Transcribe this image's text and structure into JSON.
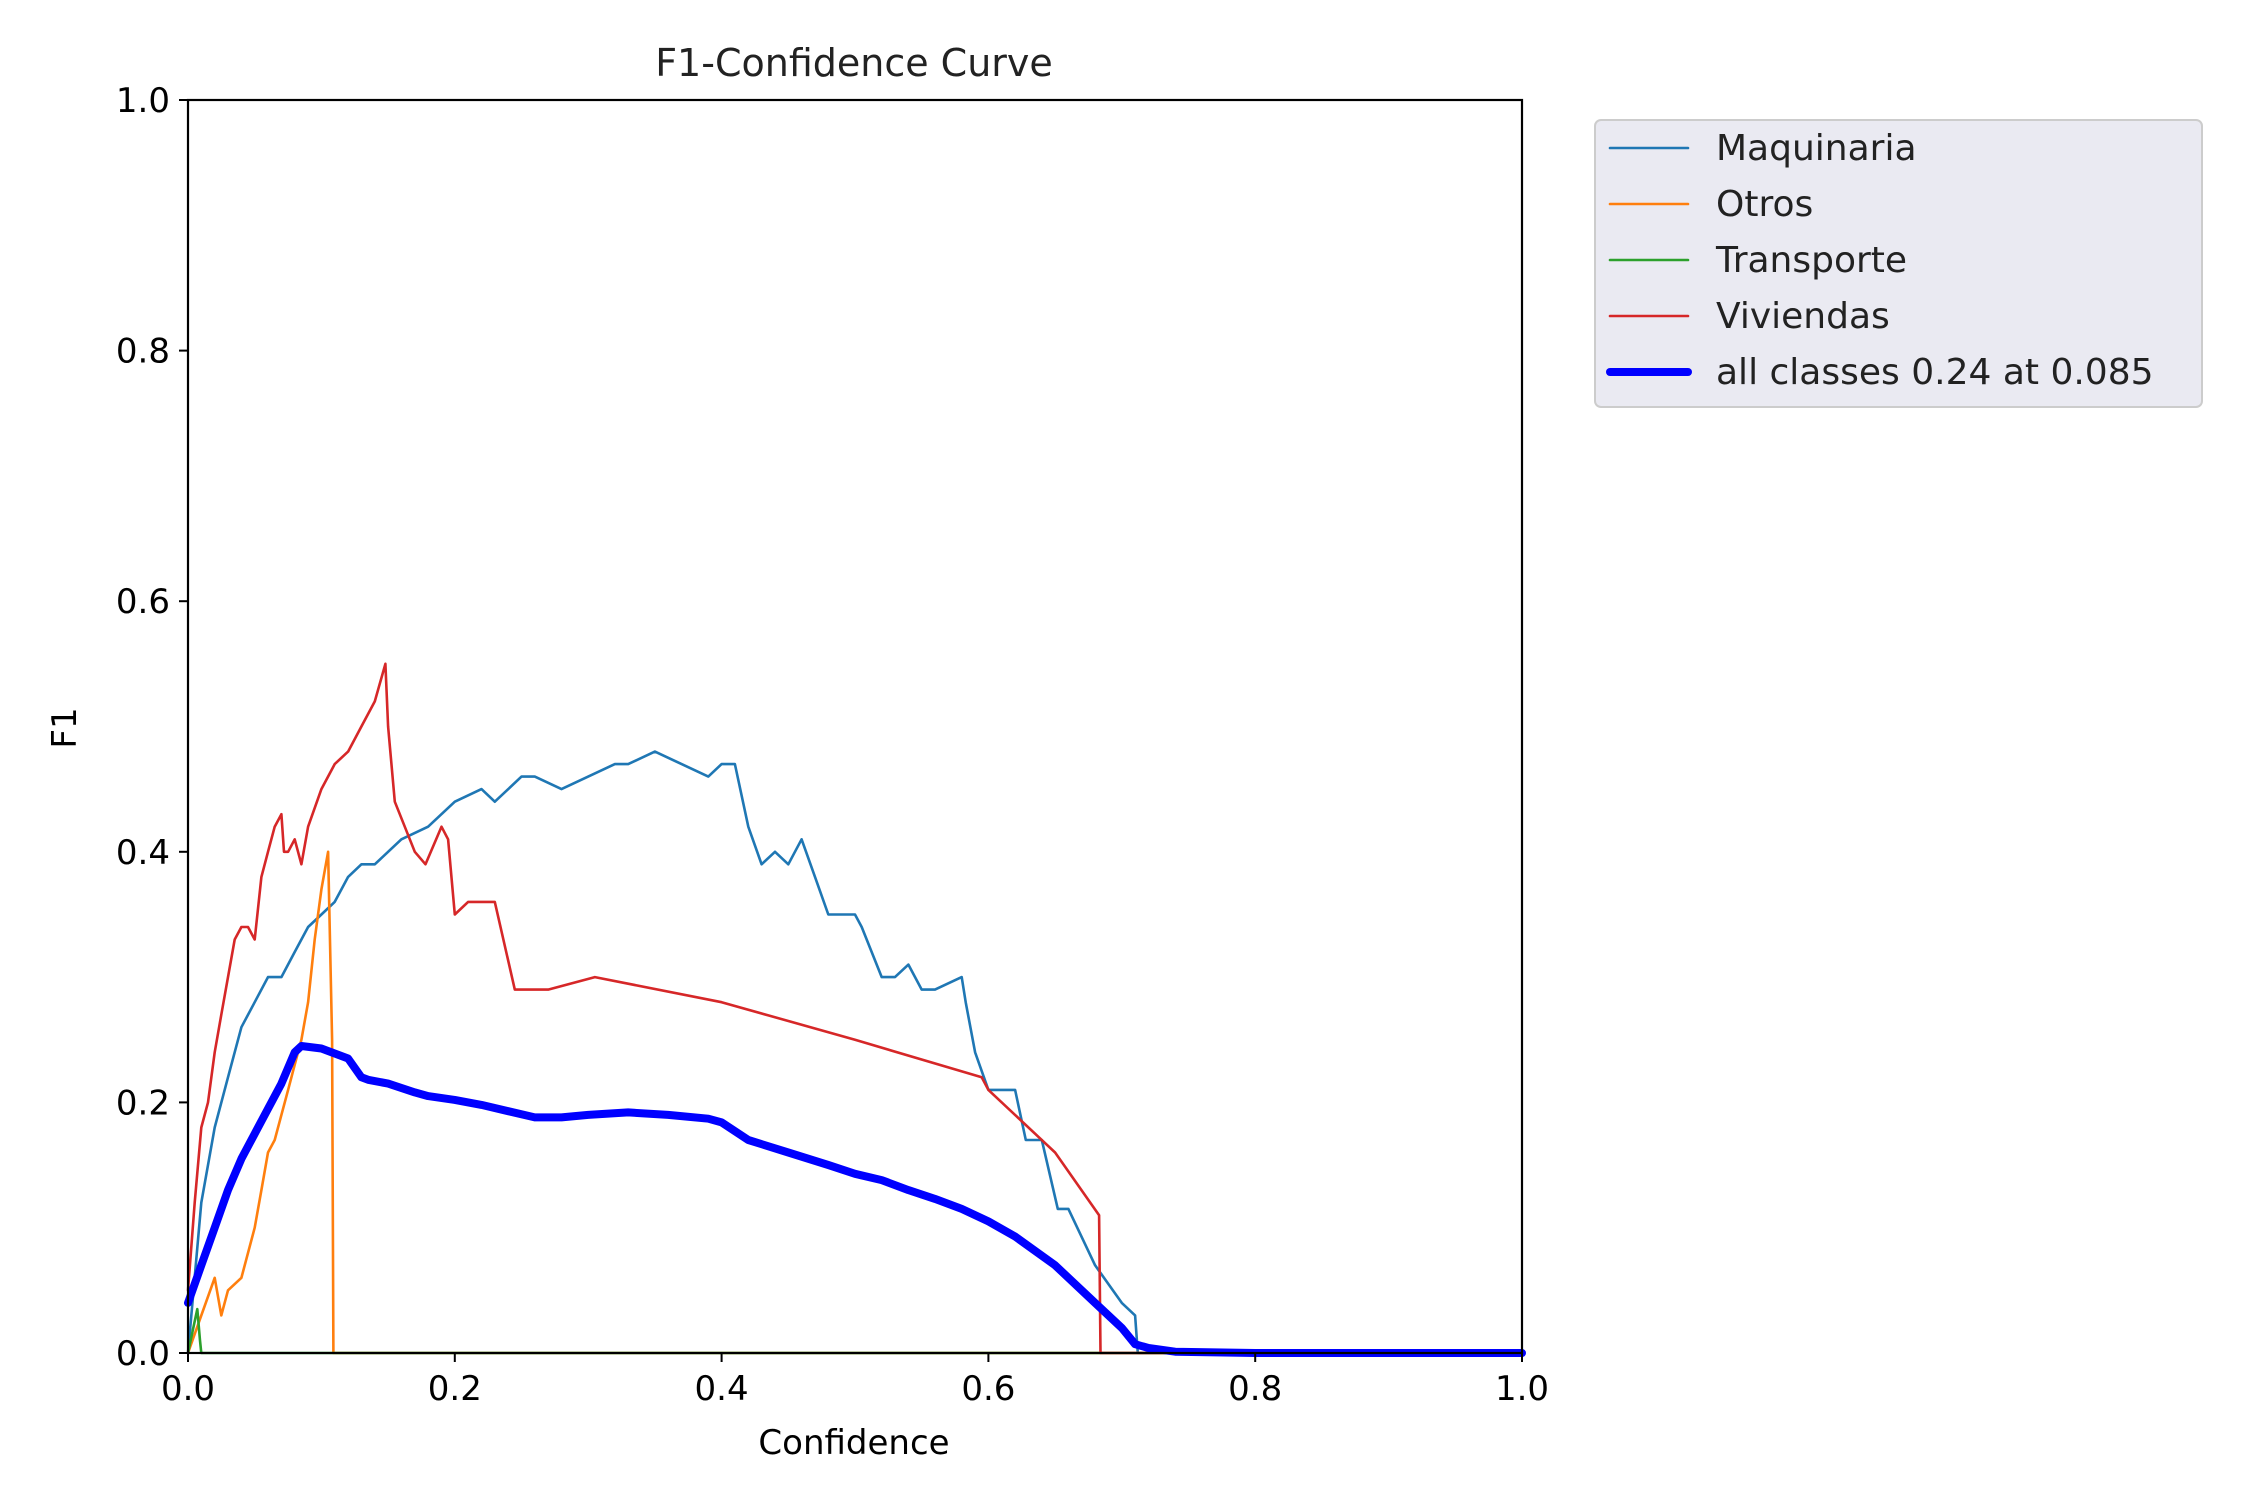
{
  "chart_data": {
    "type": "line",
    "title": "F1-Confidence Curve",
    "xlabel": "Confidence",
    "ylabel": "F1",
    "xlim": [
      0.0,
      1.0
    ],
    "ylim": [
      0.0,
      1.0
    ],
    "xticks": [
      "0.0",
      "0.2",
      "0.4",
      "0.6",
      "0.8",
      "1.0"
    ],
    "yticks": [
      "0.0",
      "0.2",
      "0.4",
      "0.6",
      "0.8",
      "1.0"
    ],
    "grid": false,
    "legend_position": "outside-top-right",
    "series": [
      {
        "name": "Maquinaria",
        "color": "#1f77b4",
        "x": [
          0.0,
          0.01,
          0.02,
          0.03,
          0.04,
          0.05,
          0.06,
          0.07,
          0.08,
          0.09,
          0.1,
          0.11,
          0.12,
          0.13,
          0.14,
          0.15,
          0.16,
          0.18,
          0.2,
          0.22,
          0.23,
          0.25,
          0.26,
          0.28,
          0.3,
          0.32,
          0.33,
          0.35,
          0.37,
          0.39,
          0.4,
          0.41,
          0.42,
          0.43,
          0.44,
          0.45,
          0.46,
          0.47,
          0.48,
          0.49,
          0.5,
          0.505,
          0.52,
          0.53,
          0.54,
          0.55,
          0.56,
          0.58,
          0.583,
          0.59,
          0.6,
          0.62,
          0.628,
          0.64,
          0.652,
          0.66,
          0.68,
          0.7,
          0.71,
          0.712,
          1.0
        ],
        "y": [
          0.0,
          0.12,
          0.18,
          0.22,
          0.26,
          0.28,
          0.3,
          0.3,
          0.32,
          0.34,
          0.35,
          0.36,
          0.38,
          0.39,
          0.39,
          0.4,
          0.41,
          0.42,
          0.44,
          0.45,
          0.44,
          0.46,
          0.46,
          0.45,
          0.46,
          0.47,
          0.47,
          0.48,
          0.47,
          0.46,
          0.47,
          0.47,
          0.42,
          0.39,
          0.4,
          0.39,
          0.41,
          0.38,
          0.35,
          0.35,
          0.35,
          0.34,
          0.3,
          0.3,
          0.31,
          0.29,
          0.29,
          0.3,
          0.28,
          0.24,
          0.21,
          0.21,
          0.17,
          0.17,
          0.115,
          0.115,
          0.07,
          0.04,
          0.03,
          0.0,
          0.0
        ]
      },
      {
        "name": "Otros",
        "color": "#ff7f0e",
        "x": [
          0.0,
          0.01,
          0.02,
          0.025,
          0.03,
          0.04,
          0.05,
          0.055,
          0.06,
          0.065,
          0.07,
          0.075,
          0.08,
          0.085,
          0.09,
          0.095,
          0.1,
          0.105,
          0.108,
          0.109,
          1.0
        ],
        "y": [
          0.0,
          0.03,
          0.06,
          0.03,
          0.05,
          0.06,
          0.1,
          0.13,
          0.16,
          0.17,
          0.19,
          0.21,
          0.23,
          0.25,
          0.28,
          0.33,
          0.37,
          0.4,
          0.25,
          0.0,
          0.0
        ]
      },
      {
        "name": "Transporte",
        "color": "#2ca02c",
        "x": [
          0.0,
          0.004,
          0.007,
          0.009,
          0.01,
          1.0
        ],
        "y": [
          0.0,
          0.02,
          0.035,
          0.01,
          0.0,
          0.0
        ]
      },
      {
        "name": "Viviendas",
        "color": "#d62728",
        "x": [
          0.0,
          0.005,
          0.01,
          0.015,
          0.02,
          0.025,
          0.03,
          0.035,
          0.04,
          0.045,
          0.05,
          0.055,
          0.06,
          0.065,
          0.07,
          0.072,
          0.075,
          0.08,
          0.085,
          0.09,
          0.1,
          0.11,
          0.12,
          0.13,
          0.14,
          0.148,
          0.15,
          0.155,
          0.17,
          0.178,
          0.19,
          0.195,
          0.2,
          0.21,
          0.23,
          0.245,
          0.27,
          0.305,
          0.4,
          0.5,
          0.595,
          0.6,
          0.65,
          0.683,
          0.684,
          1.0
        ],
        "y": [
          0.05,
          0.12,
          0.18,
          0.2,
          0.24,
          0.27,
          0.3,
          0.33,
          0.34,
          0.34,
          0.33,
          0.38,
          0.4,
          0.42,
          0.43,
          0.4,
          0.4,
          0.41,
          0.39,
          0.42,
          0.45,
          0.47,
          0.48,
          0.5,
          0.52,
          0.55,
          0.5,
          0.44,
          0.4,
          0.39,
          0.42,
          0.41,
          0.35,
          0.36,
          0.36,
          0.29,
          0.29,
          0.3,
          0.28,
          0.25,
          0.22,
          0.21,
          0.16,
          0.11,
          0.0,
          0.0
        ]
      },
      {
        "name": "all classes 0.24 at 0.085",
        "color": "#0000ff",
        "bold": true,
        "x": [
          0.0,
          0.01,
          0.02,
          0.03,
          0.04,
          0.05,
          0.06,
          0.07,
          0.08,
          0.085,
          0.1,
          0.12,
          0.13,
          0.135,
          0.15,
          0.17,
          0.18,
          0.2,
          0.22,
          0.24,
          0.26,
          0.28,
          0.3,
          0.33,
          0.36,
          0.39,
          0.4,
          0.42,
          0.45,
          0.48,
          0.5,
          0.52,
          0.54,
          0.56,
          0.58,
          0.6,
          0.62,
          0.65,
          0.68,
          0.7,
          0.71,
          0.72,
          0.74,
          0.8,
          1.0
        ],
        "y": [
          0.04,
          0.07,
          0.1,
          0.13,
          0.155,
          0.175,
          0.195,
          0.215,
          0.24,
          0.245,
          0.243,
          0.235,
          0.22,
          0.218,
          0.215,
          0.208,
          0.205,
          0.202,
          0.198,
          0.193,
          0.188,
          0.188,
          0.19,
          0.192,
          0.19,
          0.187,
          0.184,
          0.17,
          0.16,
          0.15,
          0.143,
          0.138,
          0.13,
          0.123,
          0.115,
          0.105,
          0.093,
          0.07,
          0.04,
          0.02,
          0.007,
          0.004,
          0.001,
          0.0,
          0.0
        ]
      }
    ]
  }
}
